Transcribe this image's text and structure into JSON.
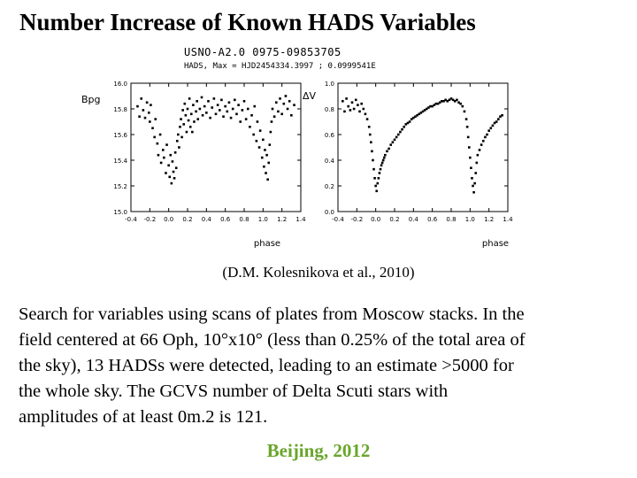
{
  "title": "Number Increase of Known HADS Variables",
  "figure": {
    "star_id": "USNO-A2.0 0975-09853705",
    "header_line": "HADS,  Max = HJD2454334.3997 ; 0.0999541E"
  },
  "caption": "(D.M. Kolesnikova et al., 2010)",
  "body_lines": [
    "Search for variables using scans of plates from Moscow stacks. In the",
    "field centered at 66 Oph, 10°x10° (less than 0.25% of the total area of",
    "the sky), 13 HADSs were detected, leading to an estimate >5000 for",
    "the whole sky. The GCVS number of Delta Scuti stars with",
    "amplitudes of at least 0m.2 is 121."
  ],
  "footer": "Beijing, 2012",
  "chart_data": [
    {
      "type": "scatter",
      "xlabel": "phase",
      "ylabel": "Bpg",
      "xlim": [
        -0.4,
        1.4
      ],
      "ylim": [
        16.0,
        15.0
      ],
      "x_ticks": [
        "-0.4",
        "-0.2",
        "0.0",
        "0.2",
        "0.4",
        "0.6",
        "0.8",
        "1.0",
        "1.2",
        "1.4"
      ],
      "y_ticks": [
        "15.0",
        "15.2",
        "15.4",
        "15.6",
        "15.8",
        "16.0"
      ],
      "color": "#000000",
      "points": [
        [
          -0.33,
          15.82
        ],
        [
          -0.31,
          15.74
        ],
        [
          -0.29,
          15.88
        ],
        [
          -0.27,
          15.79
        ],
        [
          -0.25,
          15.73
        ],
        [
          -0.23,
          15.85
        ],
        [
          -0.21,
          15.77
        ],
        [
          -0.2,
          15.7
        ],
        [
          -0.19,
          15.83
        ],
        [
          -0.17,
          15.65
        ],
        [
          -0.15,
          15.58
        ],
        [
          -0.14,
          15.72
        ],
        [
          -0.12,
          15.53
        ],
        [
          -0.11,
          15.44
        ],
        [
          -0.09,
          15.6
        ],
        [
          -0.08,
          15.38
        ],
        [
          -0.06,
          15.48
        ],
        [
          -0.05,
          15.42
        ],
        [
          -0.03,
          15.3
        ],
        [
          -0.02,
          15.52
        ],
        [
          0.0,
          15.36
        ],
        [
          0.01,
          15.27
        ],
        [
          0.02,
          15.44
        ],
        [
          0.03,
          15.22
        ],
        [
          0.04,
          15.39
        ],
        [
          0.05,
          15.31
        ],
        [
          0.06,
          15.26
        ],
        [
          0.07,
          15.46
        ],
        [
          0.08,
          15.34
        ],
        [
          0.09,
          15.55
        ],
        [
          0.1,
          15.6
        ],
        [
          0.11,
          15.5
        ],
        [
          0.12,
          15.66
        ],
        [
          0.13,
          15.72
        ],
        [
          0.14,
          15.58
        ],
        [
          0.15,
          15.79
        ],
        [
          0.16,
          15.68
        ],
        [
          0.17,
          15.84
        ],
        [
          0.18,
          15.75
        ],
        [
          0.19,
          15.62
        ],
        [
          0.2,
          15.8
        ],
        [
          0.21,
          15.71
        ],
        [
          0.22,
          15.88
        ],
        [
          0.23,
          15.66
        ],
        [
          0.24,
          15.76
        ],
        [
          0.25,
          15.62
        ],
        [
          0.26,
          15.83
        ],
        [
          0.27,
          15.7
        ],
        [
          0.29,
          15.78
        ],
        [
          0.3,
          15.86
        ],
        [
          0.31,
          15.72
        ],
        [
          0.33,
          15.8
        ],
        [
          0.35,
          15.89
        ],
        [
          0.36,
          15.75
        ],
        [
          0.38,
          15.82
        ],
        [
          0.4,
          15.77
        ],
        [
          0.42,
          15.86
        ],
        [
          0.44,
          15.73
        ],
        [
          0.46,
          15.81
        ],
        [
          0.48,
          15.88
        ],
        [
          0.5,
          15.76
        ],
        [
          0.52,
          15.83
        ],
        [
          0.54,
          15.79
        ],
        [
          0.56,
          15.87
        ],
        [
          0.58,
          15.74
        ],
        [
          0.6,
          15.82
        ],
        [
          0.62,
          15.78
        ],
        [
          0.64,
          15.85
        ],
        [
          0.66,
          15.73
        ],
        [
          0.68,
          15.8
        ],
        [
          0.7,
          15.87
        ],
        [
          0.72,
          15.76
        ],
        [
          0.74,
          15.83
        ],
        [
          0.76,
          15.7
        ],
        [
          0.78,
          15.79
        ],
        [
          0.8,
          15.86
        ],
        [
          0.82,
          15.72
        ],
        [
          0.84,
          15.8
        ],
        [
          0.86,
          15.66
        ],
        [
          0.88,
          15.75
        ],
        [
          0.9,
          15.6
        ],
        [
          0.91,
          15.82
        ],
        [
          0.93,
          15.55
        ],
        [
          0.94,
          15.7
        ],
        [
          0.96,
          15.5
        ],
        [
          0.97,
          15.63
        ],
        [
          0.99,
          15.42
        ],
        [
          1.0,
          15.56
        ],
        [
          1.01,
          15.35
        ],
        [
          1.02,
          15.48
        ],
        [
          1.03,
          15.3
        ],
        [
          1.04,
          15.44
        ],
        [
          1.05,
          15.25
        ],
        [
          1.06,
          15.38
        ],
        [
          1.07,
          15.52
        ],
        [
          1.08,
          15.62
        ],
        [
          1.09,
          15.7
        ],
        [
          1.1,
          15.8
        ],
        [
          1.12,
          15.74
        ],
        [
          1.14,
          15.85
        ],
        [
          1.16,
          15.78
        ],
        [
          1.18,
          15.88
        ],
        [
          1.2,
          15.76
        ],
        [
          1.22,
          15.84
        ],
        [
          1.24,
          15.9
        ],
        [
          1.26,
          15.8
        ],
        [
          1.28,
          15.86
        ],
        [
          1.3,
          15.75
        ],
        [
          1.33,
          15.83
        ]
      ]
    },
    {
      "type": "scatter",
      "xlabel": "phase",
      "ylabel": "ΔV",
      "xlim": [
        -0.4,
        1.4
      ],
      "ylim": [
        1.0,
        0.0
      ],
      "x_ticks": [
        "-0.4",
        "-0.2",
        "0.0",
        "0.2",
        "0.4",
        "0.6",
        "0.8",
        "1.0",
        "1.2",
        "1.4"
      ],
      "y_ticks": [
        "0.0",
        "0.2",
        "0.4",
        "0.6",
        "0.8",
        "1.0"
      ],
      "color": "#000000",
      "points": [
        [
          -0.35,
          0.86
        ],
        [
          -0.33,
          0.78
        ],
        [
          -0.31,
          0.88
        ],
        [
          -0.29,
          0.82
        ],
        [
          -0.27,
          0.79
        ],
        [
          -0.25,
          0.85
        ],
        [
          -0.23,
          0.8
        ],
        [
          -0.21,
          0.87
        ],
        [
          -0.19,
          0.83
        ],
        [
          -0.17,
          0.78
        ],
        [
          -0.15,
          0.84
        ],
        [
          -0.13,
          0.8
        ],
        [
          -0.11,
          0.76
        ],
        [
          -0.09,
          0.72
        ],
        [
          -0.07,
          0.66
        ],
        [
          -0.06,
          0.6
        ],
        [
          -0.05,
          0.54
        ],
        [
          -0.04,
          0.47
        ],
        [
          -0.03,
          0.4
        ],
        [
          -0.02,
          0.33
        ],
        [
          -0.01,
          0.26
        ],
        [
          0.0,
          0.2
        ],
        [
          0.01,
          0.16
        ],
        [
          0.02,
          0.22
        ],
        [
          0.03,
          0.26
        ],
        [
          0.04,
          0.3
        ],
        [
          0.05,
          0.33
        ],
        [
          0.06,
          0.36
        ],
        [
          0.07,
          0.38
        ],
        [
          0.08,
          0.4
        ],
        [
          0.09,
          0.42
        ],
        [
          0.1,
          0.44
        ],
        [
          0.12,
          0.47
        ],
        [
          0.14,
          0.49
        ],
        [
          0.16,
          0.52
        ],
        [
          0.18,
          0.54
        ],
        [
          0.2,
          0.56
        ],
        [
          0.22,
          0.58
        ],
        [
          0.24,
          0.6
        ],
        [
          0.26,
          0.62
        ],
        [
          0.28,
          0.64
        ],
        [
          0.3,
          0.66
        ],
        [
          0.32,
          0.68
        ],
        [
          0.34,
          0.69
        ],
        [
          0.36,
          0.7
        ],
        [
          0.38,
          0.72
        ],
        [
          0.4,
          0.73
        ],
        [
          0.42,
          0.74
        ],
        [
          0.44,
          0.75
        ],
        [
          0.46,
          0.76
        ],
        [
          0.48,
          0.77
        ],
        [
          0.5,
          0.78
        ],
        [
          0.52,
          0.79
        ],
        [
          0.54,
          0.8
        ],
        [
          0.56,
          0.81
        ],
        [
          0.58,
          0.82
        ],
        [
          0.6,
          0.82
        ],
        [
          0.62,
          0.83
        ],
        [
          0.64,
          0.84
        ],
        [
          0.66,
          0.84
        ],
        [
          0.68,
          0.85
        ],
        [
          0.7,
          0.86
        ],
        [
          0.72,
          0.86
        ],
        [
          0.74,
          0.87
        ],
        [
          0.76,
          0.86
        ],
        [
          0.78,
          0.87
        ],
        [
          0.8,
          0.88
        ],
        [
          0.82,
          0.87
        ],
        [
          0.84,
          0.86
        ],
        [
          0.86,
          0.87
        ],
        [
          0.88,
          0.85
        ],
        [
          0.9,
          0.84
        ],
        [
          0.92,
          0.82
        ],
        [
          0.94,
          0.78
        ],
        [
          0.96,
          0.72
        ],
        [
          0.97,
          0.66
        ],
        [
          0.98,
          0.58
        ],
        [
          0.99,
          0.5
        ],
        [
          1.0,
          0.42
        ],
        [
          1.01,
          0.34
        ],
        [
          1.02,
          0.26
        ],
        [
          1.03,
          0.2
        ],
        [
          1.04,
          0.15
        ],
        [
          1.05,
          0.22
        ],
        [
          1.06,
          0.3
        ],
        [
          1.07,
          0.38
        ],
        [
          1.08,
          0.44
        ],
        [
          1.1,
          0.48
        ],
        [
          1.12,
          0.52
        ],
        [
          1.14,
          0.55
        ],
        [
          1.16,
          0.58
        ],
        [
          1.18,
          0.6
        ],
        [
          1.2,
          0.63
        ],
        [
          1.22,
          0.65
        ],
        [
          1.24,
          0.67
        ],
        [
          1.26,
          0.69
        ],
        [
          1.28,
          0.7
        ],
        [
          1.3,
          0.72
        ],
        [
          1.32,
          0.74
        ],
        [
          1.34,
          0.75
        ]
      ]
    }
  ]
}
